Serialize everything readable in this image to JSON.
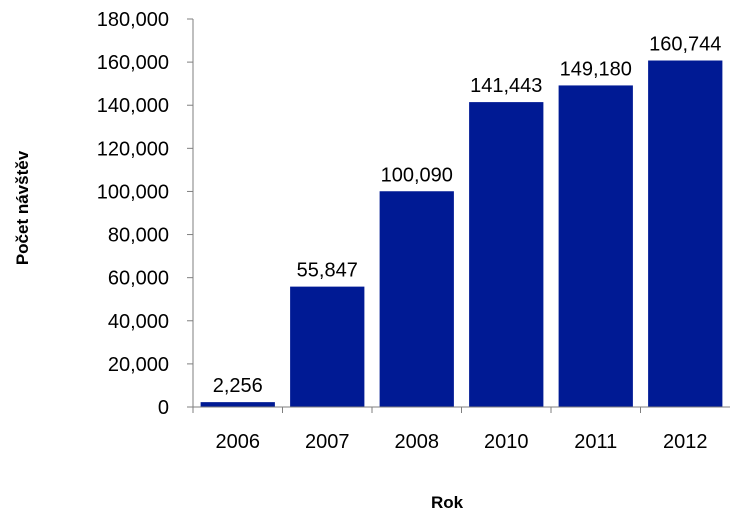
{
  "chart_data": {
    "type": "bar",
    "categories": [
      "2006",
      "2007",
      "2008",
      "2010",
      "2011",
      "2012"
    ],
    "values": [
      2256,
      55847,
      100090,
      141443,
      149180,
      160744
    ],
    "value_labels": [
      "2,256",
      "55,847",
      "100,090",
      "141,443",
      "149,180",
      "160,744"
    ],
    "title": "",
    "xlabel": "Rok",
    "ylabel": "Počet návštěv",
    "ylim": [
      0,
      180000
    ],
    "yticks": [
      0,
      20000,
      40000,
      60000,
      80000,
      100000,
      120000,
      140000,
      160000,
      180000
    ],
    "ytick_labels": [
      "0",
      "20,000",
      "40,000",
      "60,000",
      "80,000",
      "100,000",
      "120,000",
      "140,000",
      "160,000",
      "180,000"
    ],
    "grid": false,
    "legend": "none",
    "bar_color": "#001A94"
  }
}
